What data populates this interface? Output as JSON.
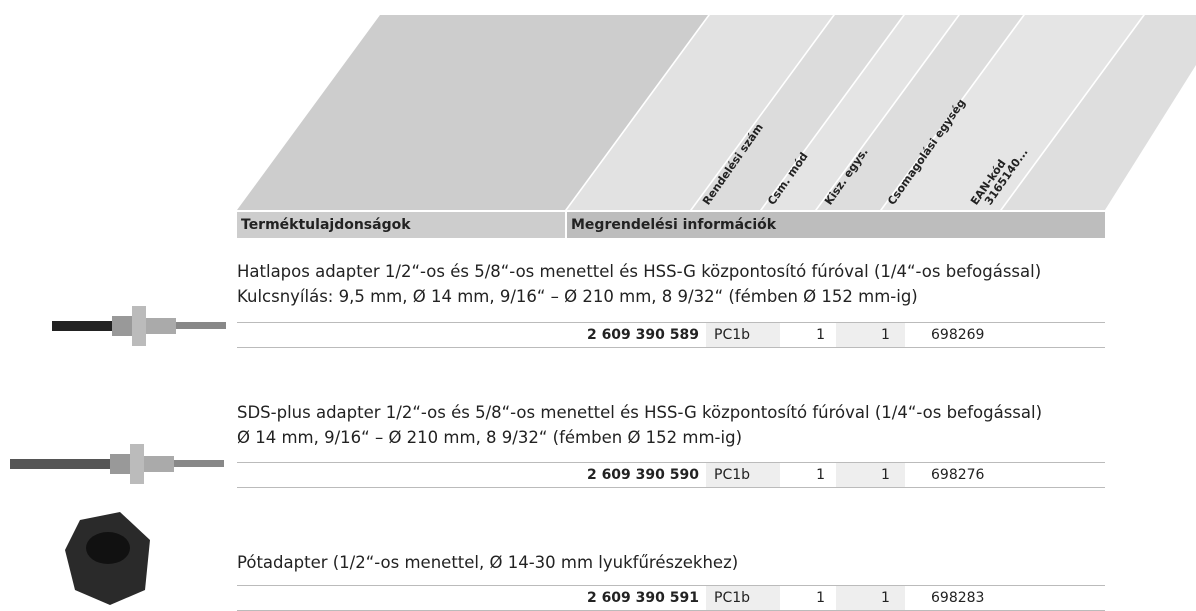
{
  "header": {
    "columns": [
      "Rendelési szám",
      "Csm. mód",
      "Kisz. egys.",
      "Csomagolási egység",
      "EAN-kód",
      "3165140..."
    ],
    "section_left": "Terméktulajdonságok",
    "section_right": "Megrendelési információk"
  },
  "products": [
    {
      "description": [
        "Hatlapos adapter 1/2“-os és 5/8“-os menettel és HSS-G központosító fúróval (1/4“-os befogással)",
        "Kulcsnyílás: 9,5 mm, Ø 14 mm, 9/16“ – Ø 210 mm, 8 9/32“ (fémben Ø 152 mm-ig)"
      ],
      "cells": [
        "2 609 390 589",
        "PC1b",
        "1",
        "1",
        "698269"
      ]
    },
    {
      "description": [
        "SDS-plus adapter 1/2“-os és 5/8“-os menettel és HSS-G központosító fúróval (1/4“-os befogással)",
        "Ø 14 mm, 9/16“ – Ø 210 mm, 8 9/32“ (fémben Ø 152 mm-ig)"
      ],
      "cells": [
        "2 609 390 590",
        "PC1b",
        "1",
        "1",
        "698276"
      ]
    },
    {
      "description": [
        "Pótadapter (1/2“-os menettel, Ø 14-30 mm lyukfűrészekhez)"
      ],
      "cells": [
        "2 609 390 591",
        "PC1b",
        "1",
        "1",
        "698283"
      ]
    }
  ]
}
